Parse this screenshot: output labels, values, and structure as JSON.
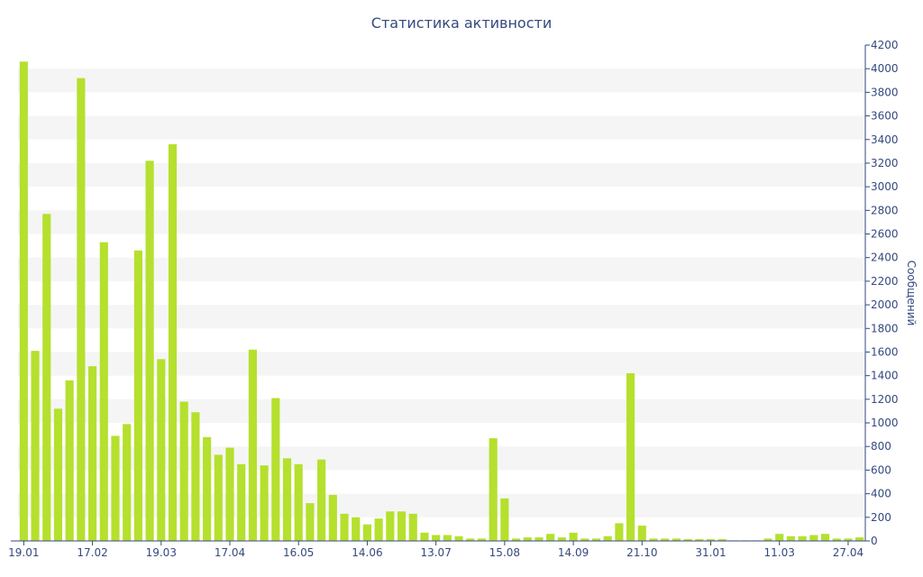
{
  "chart_data": {
    "type": "bar",
    "title": "Статистика активности",
    "ylabel": "Сообщений",
    "xlabel": "",
    "ylim": [
      0,
      4200
    ],
    "yticks": [
      0,
      200,
      400,
      600,
      800,
      1000,
      1200,
      1400,
      1600,
      1800,
      2000,
      2200,
      2400,
      2600,
      2800,
      3000,
      3200,
      3400,
      3600,
      3800,
      4000,
      4200
    ],
    "x_tick_labels": [
      {
        "index": 0,
        "label": "19.01"
      },
      {
        "index": 6,
        "label": "17.02"
      },
      {
        "index": 12,
        "label": "19.03"
      },
      {
        "index": 18,
        "label": "17.04"
      },
      {
        "index": 24,
        "label": "16.05"
      },
      {
        "index": 30,
        "label": "14.06"
      },
      {
        "index": 36,
        "label": "13.07"
      },
      {
        "index": 42,
        "label": "15.08"
      },
      {
        "index": 48,
        "label": "14.09"
      },
      {
        "index": 54,
        "label": "21.10"
      },
      {
        "index": 60,
        "label": "31.01"
      },
      {
        "index": 66,
        "label": "11.03"
      },
      {
        "index": 72,
        "label": "27.04"
      }
    ],
    "values": [
      4060,
      1610,
      2770,
      1120,
      1360,
      3920,
      1480,
      2530,
      890,
      990,
      2460,
      3220,
      1540,
      3360,
      1180,
      1090,
      880,
      730,
      790,
      650,
      1620,
      640,
      1210,
      700,
      650,
      320,
      690,
      390,
      230,
      200,
      140,
      190,
      250,
      250,
      230,
      70,
      50,
      50,
      40,
      20,
      20,
      870,
      360,
      20,
      30,
      30,
      60,
      30,
      70,
      20,
      20,
      40,
      150,
      1420,
      130,
      20,
      20,
      20,
      15,
      15,
      15,
      15,
      5,
      5,
      5,
      20,
      60,
      40,
      40,
      50,
      60,
      20,
      20,
      30
    ],
    "bar_color": "#b5e02e",
    "axis_color": "#34497f",
    "grid": "alternating bands",
    "band_color": "#f5f5f5",
    "y_axis_side": "right"
  }
}
